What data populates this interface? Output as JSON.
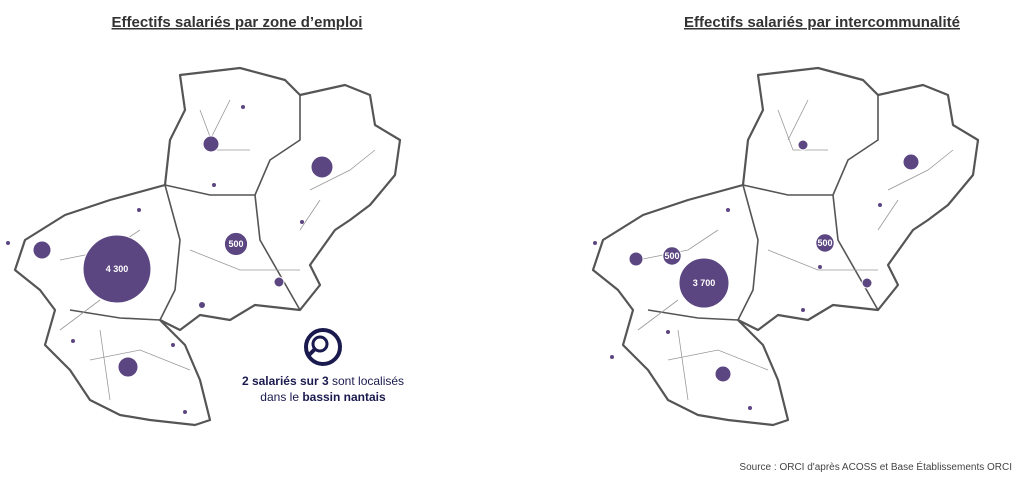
{
  "maps": [
    {
      "title": "Effectifs salariés par zone d’emploi",
      "bubbles": [
        {
          "value": 4300,
          "label": "4 300"
        },
        {
          "value": 500,
          "label": "500"
        },
        {
          "value": 451
        },
        {
          "value": 238
        },
        {
          "value": 302
        },
        {
          "value": 373
        },
        {
          "value": 93
        },
        {
          "value": 34
        },
        {
          "value": 15
        },
        {
          "value": 15
        },
        {
          "value": 15
        },
        {
          "value": 15
        },
        {
          "value": 15
        },
        {
          "value": 15
        },
        {
          "value": 15
        },
        {
          "value": 15
        }
      ]
    },
    {
      "title": "Effectifs salariés par intercommunalité",
      "bubbles": [
        {
          "value": 3700,
          "label": "3 700"
        },
        {
          "value": 500,
          "label": "500"
        },
        {
          "value": 500,
          "label": "500"
        },
        {
          "value": 379
        },
        {
          "value": 290
        },
        {
          "value": 379
        },
        {
          "value": 148
        },
        {
          "value": 148
        },
        {
          "value": 24
        },
        {
          "value": 24
        },
        {
          "value": 24
        },
        {
          "value": 24
        },
        {
          "value": 24
        },
        {
          "value": 24
        },
        {
          "value": 24
        },
        {
          "value": 24
        }
      ]
    }
  ],
  "callout": {
    "bold1": "2 salariés sur 3",
    "text1": " sont localisés",
    "text2": "dans le ",
    "bold2": "bassin nantais"
  },
  "source": "Source : ORCI d'après ACOSS et Base Établissements ORCI"
}
